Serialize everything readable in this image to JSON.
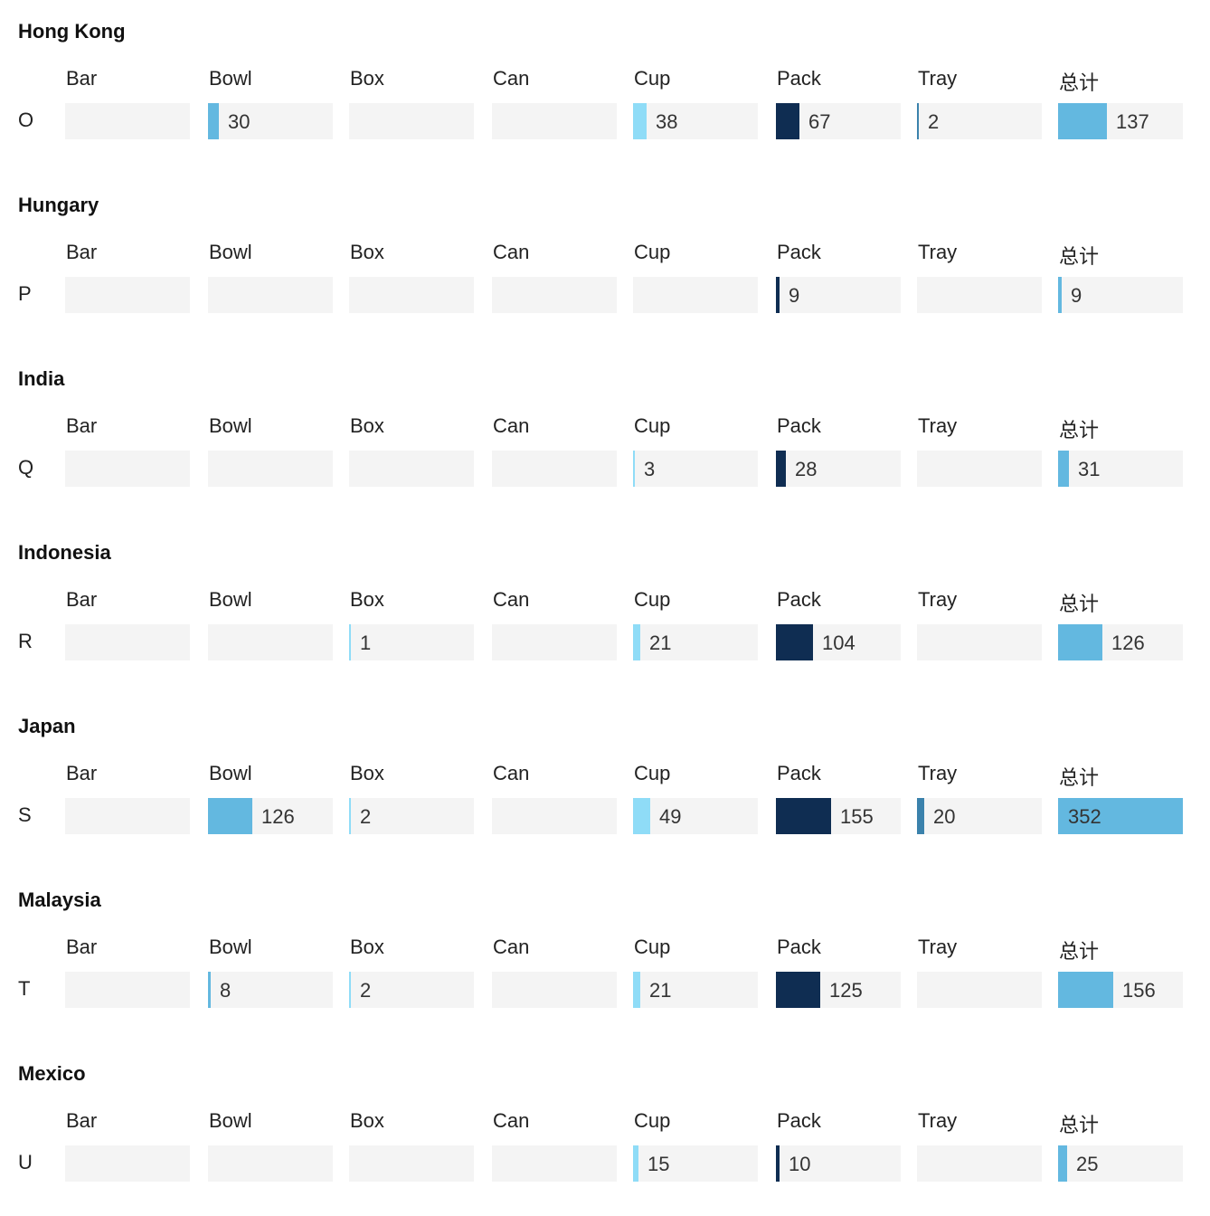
{
  "chart_data": {
    "type": "table",
    "columns": [
      "Bar",
      "Bowl",
      "Box",
      "Can",
      "Cup",
      "Pack",
      "Tray",
      "总计"
    ],
    "max_value": 352,
    "groups": [
      {
        "title": "Hong Kong",
        "row_label": "O",
        "values": [
          null,
          30,
          null,
          null,
          38,
          67,
          2,
          137
        ]
      },
      {
        "title": "Hungary",
        "row_label": "P",
        "values": [
          null,
          null,
          null,
          null,
          null,
          9,
          null,
          9
        ]
      },
      {
        "title": "India",
        "row_label": "Q",
        "values": [
          null,
          null,
          null,
          null,
          3,
          28,
          null,
          31
        ]
      },
      {
        "title": "Indonesia",
        "row_label": "R",
        "values": [
          null,
          null,
          1,
          null,
          21,
          104,
          null,
          126
        ]
      },
      {
        "title": "Japan",
        "row_label": "S",
        "values": [
          null,
          126,
          2,
          null,
          49,
          155,
          20,
          352
        ]
      },
      {
        "title": "Malaysia",
        "row_label": "T",
        "values": [
          null,
          8,
          2,
          null,
          21,
          125,
          null,
          156
        ]
      },
      {
        "title": "Mexico",
        "row_label": "U",
        "values": [
          null,
          null,
          null,
          null,
          15,
          10,
          null,
          25
        ]
      }
    ],
    "colors": {
      "cell_background": "#f4f4f4",
      "Bar": "#63b8e0",
      "Bowl": "#63b8e0",
      "Box": "#8fdcf7",
      "Can": "#63b8e0",
      "Cup": "#8fdcf7",
      "Pack": "#0f2d52",
      "Tray": "#3b82ac",
      "总计": "#63b8e0"
    }
  }
}
